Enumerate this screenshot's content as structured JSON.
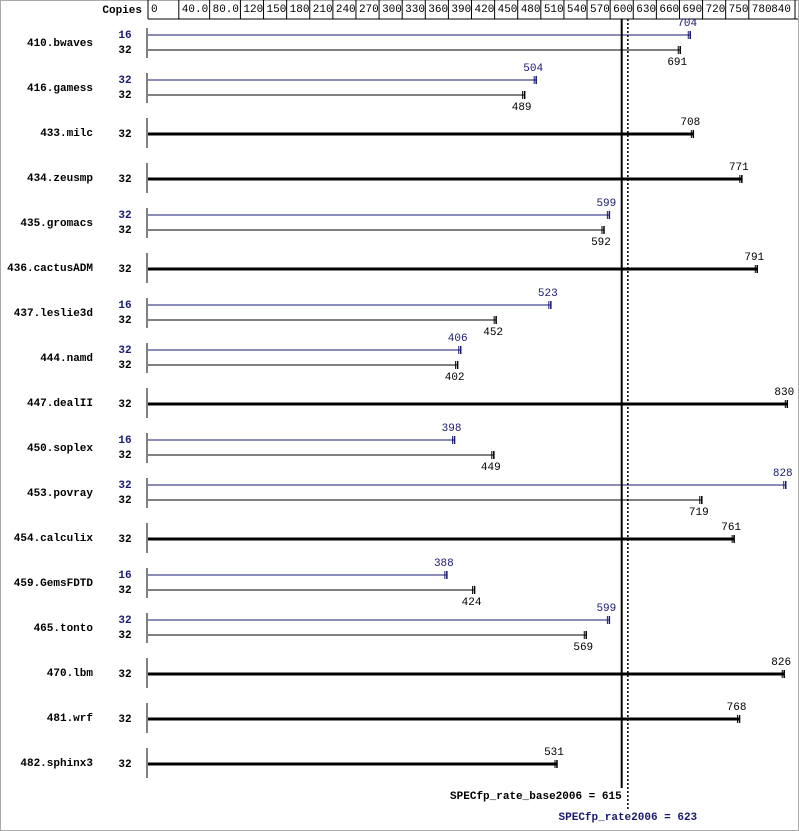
{
  "chart_data": {
    "type": "bar",
    "orientation": "horizontal",
    "copies_label": "Copies",
    "categories": [
      "410.bwaves",
      "416.gamess",
      "433.milc",
      "434.zeusmp",
      "435.gromacs",
      "436.cactusADM",
      "437.leslie3d",
      "444.namd",
      "447.dealII",
      "450.soplex",
      "453.povray",
      "454.calculix",
      "459.GemsFDTD",
      "465.tonto",
      "470.lbm",
      "481.wrf",
      "482.sphinx3"
    ],
    "series": [
      {
        "color": "#191970",
        "copies": [
          16,
          32,
          null,
          null,
          32,
          null,
          16,
          32,
          null,
          16,
          32,
          null,
          16,
          32,
          null,
          null,
          null
        ],
        "values": [
          704,
          504,
          null,
          null,
          599,
          null,
          523,
          406,
          null,
          398,
          828,
          null,
          388,
          599,
          null,
          null,
          null
        ]
      },
      {
        "color": "#000000",
        "copies": [
          32,
          32,
          32,
          32,
          32,
          32,
          32,
          32,
          32,
          32,
          32,
          32,
          32,
          32,
          32,
          32,
          32
        ],
        "values": [
          691,
          489,
          708,
          771,
          592,
          791,
          452,
          402,
          830,
          449,
          719,
          761,
          424,
          569,
          826,
          768,
          531
        ]
      }
    ],
    "xlim": [
      0,
      840
    ],
    "xticks": [
      0,
      {
        "value": 40,
        "label": "40.0"
      },
      {
        "value": 80,
        "label": "80.0"
      },
      120,
      150,
      180,
      210,
      240,
      270,
      300,
      330,
      360,
      390,
      420,
      450,
      480,
      510,
      540,
      570,
      600,
      630,
      660,
      690,
      720,
      750,
      780,
      840
    ],
    "reference_lines": [
      {
        "label": "SPECfp_rate_base2006 = 615",
        "value": 615,
        "color": "#000000",
        "style": "solid"
      },
      {
        "label": "SPECfp_rate2006 = 623",
        "value": 623,
        "color": "#191970",
        "style": "dotted"
      }
    ]
  }
}
